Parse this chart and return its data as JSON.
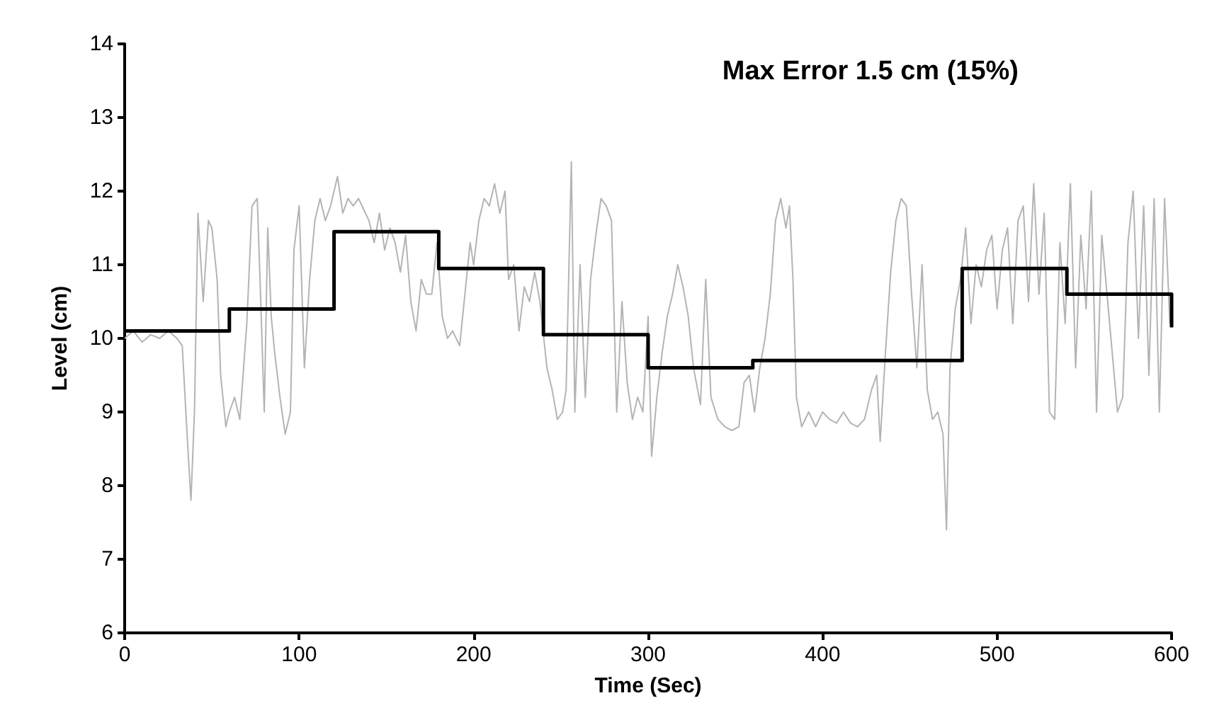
{
  "chart_data": {
    "type": "line",
    "title": "Max Error 1.5 cm (15%)",
    "xlabel": "Time (Sec)",
    "ylabel": "Level (cm)",
    "xlim": [
      0,
      600
    ],
    "xticks": [
      0,
      100,
      200,
      300,
      400,
      500,
      600
    ],
    "ylim": [
      6,
      14
    ],
    "yticks": [
      6,
      7,
      8,
      9,
      10,
      11,
      12,
      13,
      14
    ],
    "grid": false,
    "marker": "none",
    "series": [
      {
        "color": "#b4b4b4",
        "x": [
          0,
          5,
          10,
          15,
          20,
          25,
          30,
          33,
          36,
          38,
          40,
          42,
          45,
          48,
          50,
          53,
          55,
          58,
          60,
          63,
          66,
          70,
          73,
          76,
          78,
          80,
          82,
          84,
          86,
          89,
          92,
          95,
          97,
          100,
          103,
          106,
          109,
          112,
          115,
          118,
          120,
          122,
          125,
          128,
          131,
          134,
          137,
          140,
          143,
          146,
          149,
          152,
          155,
          158,
          161,
          164,
          167,
          170,
          173,
          176,
          179,
          182,
          185,
          188,
          192,
          195,
          198,
          200,
          203,
          206,
          209,
          212,
          215,
          218,
          220,
          223,
          226,
          229,
          232,
          235,
          238,
          242,
          245,
          248,
          251,
          253,
          256,
          258,
          261,
          264,
          267,
          270,
          273,
          276,
          279,
          282,
          285,
          288,
          291,
          294,
          297,
          300,
          302,
          305,
          308,
          311,
          314,
          317,
          320,
          323,
          326,
          330,
          333,
          336,
          340,
          344,
          348,
          352,
          355,
          358,
          361,
          364,
          367,
          370,
          373,
          376,
          379,
          381,
          383,
          385,
          388,
          392,
          396,
          400,
          404,
          408,
          412,
          416,
          420,
          424,
          428,
          431,
          433,
          436,
          439,
          442,
          445,
          448,
          451,
          454,
          457,
          460,
          463,
          466,
          469,
          471,
          473,
          476,
          479,
          482,
          485,
          488,
          491,
          494,
          497,
          500,
          503,
          506,
          509,
          512,
          515,
          518,
          521,
          524,
          527,
          530,
          533,
          536,
          539,
          542,
          545,
          548,
          551,
          554,
          557,
          560,
          563,
          566,
          569,
          572,
          575,
          578,
          581,
          584,
          587,
          590,
          593,
          596,
          599
        ],
        "values": [
          10.0,
          10.1,
          9.95,
          10.05,
          10.0,
          10.1,
          10.0,
          9.9,
          8.6,
          7.8,
          9.0,
          11.7,
          10.5,
          11.6,
          11.5,
          10.8,
          9.5,
          8.8,
          9.0,
          9.2,
          8.9,
          10.2,
          11.8,
          11.9,
          10.5,
          9.0,
          11.5,
          10.3,
          9.8,
          9.2,
          8.7,
          9.0,
          11.2,
          11.8,
          9.6,
          10.8,
          11.6,
          11.9,
          11.6,
          11.8,
          12.0,
          12.2,
          11.7,
          11.9,
          11.8,
          11.9,
          11.75,
          11.6,
          11.3,
          11.7,
          11.2,
          11.5,
          11.3,
          10.9,
          11.4,
          10.5,
          10.1,
          10.8,
          10.6,
          10.6,
          11.3,
          10.3,
          10.0,
          10.1,
          9.9,
          10.6,
          11.3,
          11.0,
          11.6,
          11.9,
          11.8,
          12.1,
          11.7,
          12.0,
          10.8,
          11.0,
          10.1,
          10.7,
          10.5,
          10.9,
          10.5,
          9.6,
          9.3,
          8.9,
          9.0,
          9.3,
          12.4,
          9.0,
          11.0,
          9.2,
          10.8,
          11.4,
          11.9,
          11.8,
          11.6,
          9.0,
          10.5,
          9.4,
          8.9,
          9.2,
          9.0,
          10.3,
          8.4,
          9.2,
          9.8,
          10.3,
          10.6,
          11.0,
          10.7,
          10.3,
          9.6,
          9.1,
          10.8,
          9.2,
          8.9,
          8.8,
          8.75,
          8.8,
          9.4,
          9.5,
          9.0,
          9.6,
          10.0,
          10.6,
          11.6,
          11.9,
          11.5,
          11.8,
          10.8,
          9.2,
          8.8,
          9.0,
          8.8,
          9.0,
          8.9,
          8.85,
          9.0,
          8.85,
          8.8,
          8.9,
          9.3,
          9.5,
          8.6,
          9.8,
          10.9,
          11.6,
          11.9,
          11.8,
          10.6,
          9.6,
          11.0,
          9.3,
          8.9,
          9.0,
          8.7,
          7.4,
          9.6,
          10.4,
          10.8,
          11.5,
          10.2,
          11.0,
          10.7,
          11.2,
          11.4,
          10.4,
          11.2,
          11.5,
          10.2,
          11.6,
          11.8,
          10.5,
          12.1,
          10.6,
          11.7,
          9.0,
          8.9,
          11.3,
          10.2,
          12.1,
          9.6,
          11.4,
          10.4,
          12.0,
          9.0,
          11.4,
          10.6,
          9.8,
          9.0,
          9.2,
          11.3,
          12.0,
          10.0,
          11.8,
          9.5,
          11.9,
          9.0,
          11.9,
          10.2
        ]
      },
      {
        "type": "step",
        "color": "#000000",
        "x": [
          0,
          60,
          120,
          180,
          240,
          300,
          360,
          480,
          540,
          600,
          600
        ],
        "values": [
          10.1,
          10.4,
          11.45,
          10.95,
          10.05,
          9.6,
          9.7,
          10.95,
          10.6,
          10.6,
          10.15
        ]
      }
    ]
  }
}
